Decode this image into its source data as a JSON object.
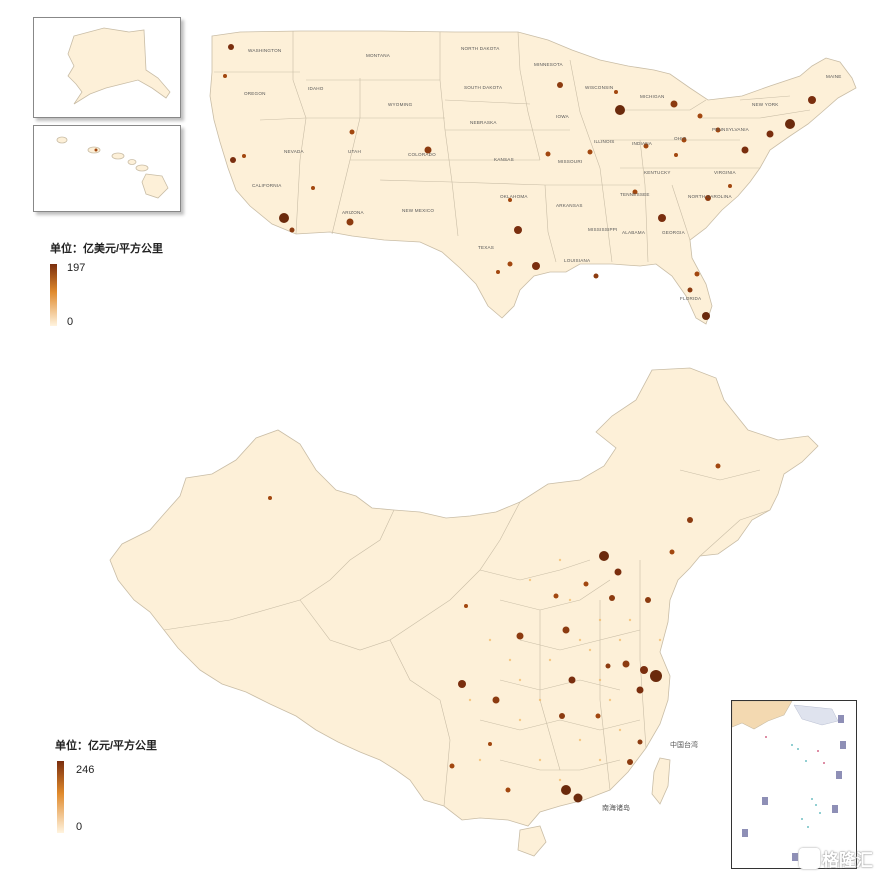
{
  "us_map": {
    "legend": {
      "title": "单位：亿美元/平方公里",
      "max_label": "197",
      "min_label": "0",
      "max_value": 197,
      "min_value": 0
    },
    "state_labels": [
      "WASHINGTON",
      "MONTANA",
      "NORTH DAKOTA",
      "MINNESOTA",
      "MAINE",
      "OREGON",
      "IDAHO",
      "SOUTH DAKOTA",
      "WISCONSIN",
      "MICHIGAN",
      "WYOMING",
      "NEW YORK",
      "IOWA",
      "NEBRASKA",
      "PENNSYLVANIA",
      "NEVADA",
      "UTAH",
      "COLORADO",
      "ILLINOIS",
      "INDIANA",
      "OHIO",
      "KANSAS",
      "MISSOURI",
      "KENTUCKY",
      "VIRGINIA",
      "CALIFORNIA",
      "TENNESSEE",
      "NORTH CAROLINA",
      "OKLAHOMA",
      "ARKANSAS",
      "ARIZONA",
      "NEW MEXICO",
      "MISSISSIPPI",
      "ALABAMA",
      "GEORGIA",
      "TEXAS",
      "LOUISIANA",
      "FLORIDA"
    ]
  },
  "china_map": {
    "legend": {
      "title": "单位：亿元/平方公里",
      "max_label": "246",
      "min_label": "0",
      "max_value": 246,
      "min_value": 0
    },
    "sea_labels": [
      "中国台湾",
      "南海诸岛"
    ]
  },
  "colors": {
    "land": "#fdf0d8",
    "border": "#c9bda6",
    "low": "#f7c97a",
    "mid": "#e08a2c",
    "high": "#6b2a0c",
    "legend_top": "#7a2e0e",
    "legend_bottom": "#fff4df"
  },
  "watermark": {
    "icon": "gelonghui-logo-icon",
    "text": "格隆汇"
  }
}
